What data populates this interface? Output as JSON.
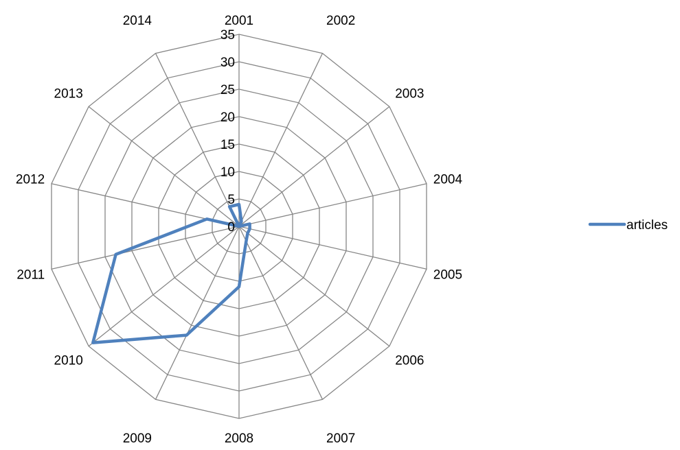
{
  "chart_data": {
    "type": "radar",
    "categories": [
      "2001",
      "2002",
      "2003",
      "2004",
      "2005",
      "2006",
      "2007",
      "2008",
      "2009",
      "2010",
      "2011",
      "2012",
      "2013",
      "2014"
    ],
    "series": [
      {
        "name": "articles",
        "color": "#4F81BD",
        "values": [
          4,
          1,
          0,
          2,
          2,
          2,
          3,
          11,
          22,
          34,
          23,
          6,
          0,
          4
        ]
      }
    ],
    "r_axis": {
      "min": 0,
      "max": 35,
      "step": 5,
      "tick_labels": [
        "0",
        "5",
        "10",
        "15",
        "20",
        "25",
        "30",
        "35"
      ]
    },
    "grid": true,
    "legend_position": "right",
    "gridline_color": "#868686"
  }
}
